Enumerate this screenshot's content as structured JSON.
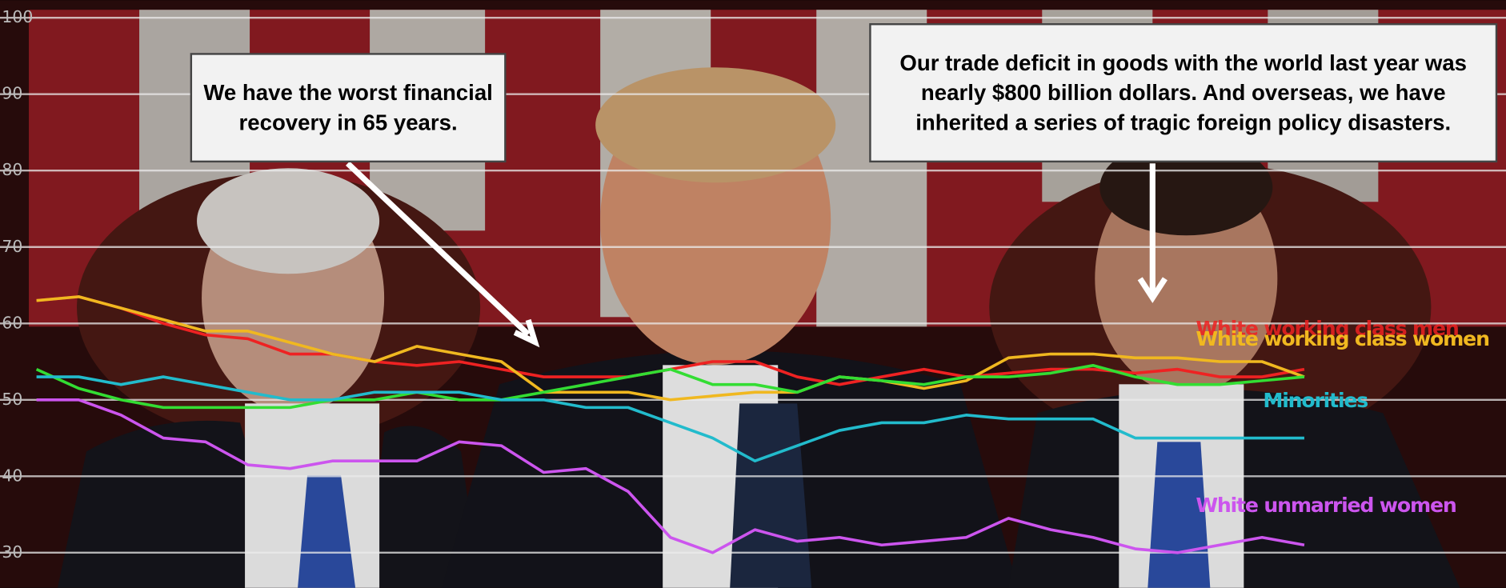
{
  "chart_data": {
    "type": "line",
    "ylim": [
      25.4,
      102.3
    ],
    "yticks": [
      30,
      40,
      50,
      60,
      70,
      80,
      90,
      100
    ],
    "grid": true,
    "series": [
      {
        "name": "White working class men",
        "color": "#ee2222",
        "values": [
          63,
          63.5,
          62,
          60,
          58.5,
          58,
          56,
          56,
          55,
          54.5,
          55,
          54,
          53,
          53,
          53,
          54,
          55,
          55,
          53,
          52,
          53,
          54,
          53,
          53.5,
          54,
          54,
          53.5,
          54,
          53,
          53,
          54
        ]
      },
      {
        "name": "White working class women",
        "color": "#f0b820",
        "values": [
          63,
          63.5,
          62,
          60.5,
          59,
          59,
          57.5,
          56,
          55,
          57,
          56,
          55,
          51,
          51,
          51,
          50,
          50.5,
          51,
          51,
          53,
          52.5,
          51.5,
          52.5,
          55.5,
          56,
          56,
          55.5,
          55.5,
          55,
          55,
          53
        ]
      },
      {
        "color": "#33dd33",
        "values": [
          54,
          51.5,
          50,
          49,
          49,
          49,
          49,
          50,
          50,
          51,
          50,
          50,
          51,
          52,
          53,
          54,
          52,
          52,
          51,
          53,
          52.5,
          52,
          53,
          53,
          53.5,
          54.5,
          53,
          52,
          52,
          52.5,
          53
        ]
      },
      {
        "name": "Minorities",
        "color": "#22bbcc",
        "values": [
          53,
          53,
          52,
          53,
          52,
          51,
          50,
          50,
          51,
          51,
          51,
          50,
          50,
          49,
          49,
          47,
          45,
          42,
          44,
          46,
          47,
          47,
          48,
          47.5,
          47.5,
          47.5,
          45,
          45,
          45,
          45,
          45
        ]
      },
      {
        "name": "White unmarried women",
        "color": "#cc55ee",
        "values": [
          50,
          50,
          48,
          45,
          44.5,
          41.5,
          41,
          42,
          42,
          42,
          44.5,
          44,
          40.5,
          41,
          38,
          32,
          30,
          33,
          31.5,
          32,
          31,
          31.5,
          32,
          34.5,
          33,
          32,
          30.5,
          30,
          31,
          32,
          31
        ]
      }
    ],
    "annotations": [
      {
        "text": "We have the worst financial recovery in 65 years."
      },
      {
        "text": "Our trade deficit in goods with the world last year was nearly $800 billion dollars. And overseas, we have inherited a series of tragic foreign policy disasters."
      }
    ]
  }
}
